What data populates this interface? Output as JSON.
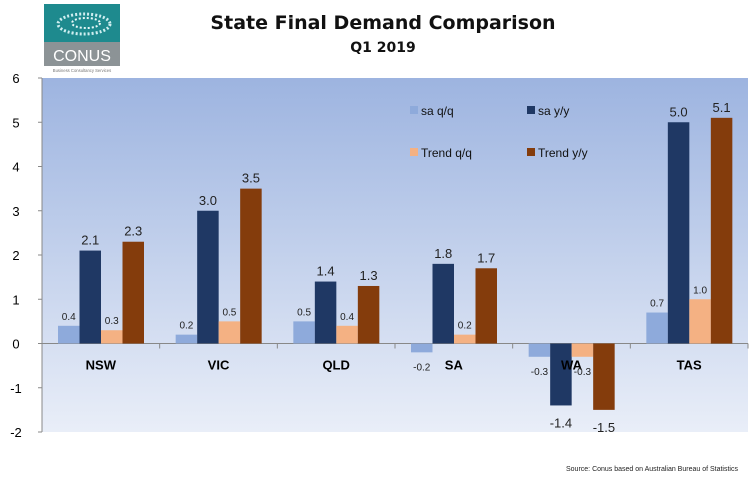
{
  "header": {
    "title": "State Final Demand Comparison",
    "subtitle": "Q1 2019"
  },
  "logo": {
    "text": "CONUS",
    "tagline": "Business Consultancy Services",
    "colors": {
      "top": "#1e8a8e",
      "bottom": "#8c9396"
    }
  },
  "source": "Source: Conus based on Australian Bureau of Statistics",
  "chart_data": {
    "type": "bar",
    "title": "State Final Demand Comparison",
    "subtitle": "Q1 2019",
    "categories": [
      "NSW",
      "VIC",
      "QLD",
      "SA",
      "WA",
      "TAS"
    ],
    "series": [
      {
        "name": "sa q/q",
        "color": "#8eaadb",
        "values": [
          0.4,
          0.2,
          0.5,
          -0.2,
          -0.3,
          0.7
        ]
      },
      {
        "name": "sa y/y",
        "color": "#1f3864",
        "values": [
          2.1,
          3.0,
          1.4,
          1.8,
          -1.4,
          5.0
        ]
      },
      {
        "name": "Trend q/q",
        "color": "#f4b183",
        "values": [
          0.3,
          0.5,
          0.4,
          0.2,
          -0.3,
          1.0
        ]
      },
      {
        "name": "Trend y/y",
        "color": "#843c0c",
        "values": [
          2.3,
          3.5,
          1.3,
          1.7,
          -1.5,
          5.1
        ]
      }
    ],
    "ylim": [
      -2,
      6
    ],
    "yticks": [
      -2,
      -1,
      0,
      1,
      2,
      3,
      4,
      5,
      6
    ],
    "legend": "top-right",
    "grid": false,
    "background": {
      "top": "#9db4e0",
      "bottom": "#e9eef8"
    }
  }
}
